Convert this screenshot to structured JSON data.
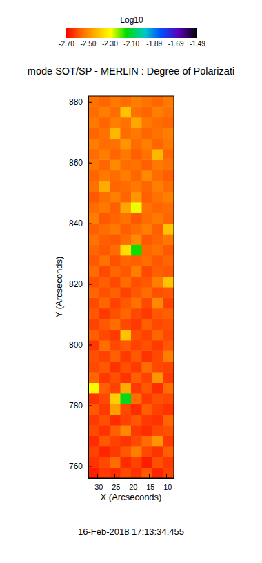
{
  "chart_data": {
    "type": "heatmap",
    "title": "mode SOT/SP - MERLIN : Degree of Polarizati",
    "x_label": "X (Arcseconds)",
    "y_label": "Y (Arcseconds)",
    "annotation": "16-Feb-2018 17:13:34.455",
    "xlim": [
      -32.6,
      -7.8
    ],
    "ylim": [
      756,
      882
    ],
    "xticks": [
      -30,
      -25,
      -20,
      -15,
      -10
    ],
    "yticks": [
      760,
      780,
      800,
      820,
      840,
      860,
      880
    ],
    "x_edges": [
      -32.6,
      -29.5,
      -26.4,
      -23.3,
      -20.2,
      -17.1,
      -14.0,
      -10.9,
      -7.8
    ],
    "y_edges": [
      756,
      759.5,
      763,
      766.5,
      770,
      773.5,
      777,
      780.5,
      784,
      787.5,
      791,
      794.5,
      798,
      801.5,
      805,
      808.5,
      812,
      815.5,
      819,
      822.5,
      826,
      829.5,
      833,
      836.5,
      840,
      843.5,
      847,
      850.5,
      854,
      857.5,
      861,
      864.5,
      868,
      871.5,
      875,
      878.5,
      882
    ],
    "z": [
      [
        -2.66,
        -2.62,
        -2.64,
        -2.6,
        -2.63,
        -2.58,
        -2.65,
        -2.61
      ],
      [
        -2.63,
        -2.6,
        -2.55,
        -2.64,
        -2.61,
        -2.66,
        -2.59,
        -2.62
      ],
      [
        -2.61,
        -2.65,
        -2.62,
        -2.58,
        -2.52,
        -2.6,
        -2.63,
        -2.57
      ],
      [
        -2.64,
        -2.58,
        -2.61,
        -2.63,
        -2.6,
        -2.55,
        -2.48,
        -2.62
      ],
      [
        -2.6,
        -2.63,
        -2.57,
        -2.5,
        -2.62,
        -2.64,
        -2.6,
        -2.59
      ],
      [
        -2.62,
        -2.59,
        -2.64,
        -2.61,
        -2.58,
        -2.62,
        -2.63,
        -2.56
      ],
      [
        -2.58,
        -2.62,
        -2.46,
        -2.6,
        -2.64,
        -2.57,
        -2.61,
        -2.63
      ],
      [
        -2.63,
        -2.6,
        -2.38,
        -2.12,
        -2.55,
        -2.62,
        -2.59,
        -2.6
      ],
      [
        -2.3,
        -2.57,
        -2.61,
        -2.44,
        -2.62,
        -2.58,
        -2.64,
        -2.55
      ],
      [
        -2.56,
        -2.62,
        -2.59,
        -2.63,
        -2.57,
        -2.61,
        -2.48,
        -2.62
      ],
      [
        -2.6,
        -2.58,
        -2.63,
        -2.59,
        -2.62,
        -2.55,
        -2.6,
        -2.61
      ],
      [
        -2.59,
        -2.61,
        -2.57,
        -2.62,
        -2.58,
        -2.63,
        -2.6,
        -2.52
      ],
      [
        -2.62,
        -2.55,
        -2.6,
        -2.58,
        -2.61,
        -2.59,
        -2.62,
        -2.58
      ],
      [
        -2.57,
        -2.6,
        -2.62,
        -2.4,
        -2.59,
        -2.61,
        -2.56,
        -2.6
      ],
      [
        -2.61,
        -2.58,
        -2.55,
        -2.6,
        -2.62,
        -2.57,
        -2.6,
        -2.59
      ],
      [
        -2.58,
        -2.62,
        -2.59,
        -2.56,
        -2.6,
        -2.62,
        -2.58,
        -2.57
      ],
      [
        -2.6,
        -2.56,
        -2.61,
        -2.58,
        -2.54,
        -2.6,
        -2.5,
        -2.61
      ],
      [
        -2.56,
        -2.59,
        -2.57,
        -2.61,
        -2.58,
        -2.55,
        -2.59,
        -2.58
      ],
      [
        -2.59,
        -2.57,
        -2.6,
        -2.55,
        -2.59,
        -2.58,
        -2.52,
        -2.4
      ],
      [
        -2.55,
        -2.6,
        -2.56,
        -2.58,
        -2.52,
        -2.6,
        -2.57,
        -2.58
      ],
      [
        -2.58,
        -2.54,
        -2.59,
        -2.56,
        -2.57,
        -2.55,
        -2.58,
        -2.56
      ],
      [
        -2.56,
        -2.58,
        -2.55,
        -2.35,
        -2.15,
        -2.56,
        -2.54,
        -2.58
      ],
      [
        -2.54,
        -2.57,
        -2.58,
        -2.55,
        -2.5,
        -2.58,
        -2.56,
        -2.53
      ],
      [
        -2.57,
        -2.55,
        -2.53,
        -2.57,
        -2.55,
        -2.52,
        -2.57,
        -2.4
      ],
      [
        -2.52,
        -2.58,
        -2.56,
        -2.54,
        -2.58,
        -2.55,
        -2.53,
        -2.56
      ],
      [
        -2.55,
        -2.53,
        -2.57,
        -2.45,
        -2.28,
        -2.54,
        -2.56,
        -2.55
      ],
      [
        -2.58,
        -2.55,
        -2.52,
        -2.56,
        -2.48,
        -2.57,
        -2.54,
        -2.52
      ],
      [
        -2.54,
        -2.44,
        -2.56,
        -2.55,
        -2.53,
        -2.56,
        -2.52,
        -2.55
      ],
      [
        -2.56,
        -2.53,
        -2.55,
        -2.52,
        -2.56,
        -2.5,
        -2.55,
        -2.57
      ],
      [
        -2.53,
        -2.56,
        -2.5,
        -2.55,
        -2.54,
        -2.57,
        -2.53,
        -2.54
      ],
      [
        -2.55,
        -2.52,
        -2.56,
        -2.53,
        -2.57,
        -2.54,
        -2.42,
        -2.56
      ],
      [
        -2.52,
        -2.55,
        -2.54,
        -2.48,
        -2.55,
        -2.52,
        -2.56,
        -2.53
      ],
      [
        -2.56,
        -2.54,
        -2.42,
        -2.55,
        -2.53,
        -2.56,
        -2.54,
        -2.52
      ],
      [
        -2.53,
        -2.56,
        -2.52,
        -2.54,
        -2.45,
        -2.53,
        -2.55,
        -2.56
      ],
      [
        -2.55,
        -2.52,
        -2.55,
        -2.4,
        -2.54,
        -2.56,
        -2.52,
        -2.54
      ],
      [
        -2.54,
        -2.56,
        -2.53,
        -2.55,
        -2.52,
        -2.54,
        -2.56,
        -2.53
      ]
    ],
    "colorbar": {
      "title": "Log10",
      "range": [
        -2.7,
        -1.49
      ],
      "ticks": [
        {
          "value": -2.7,
          "label": "-2.70"
        },
        {
          "value": -2.5,
          "label": "-2.50"
        },
        {
          "value": -2.3,
          "label": "-2.30"
        },
        {
          "value": -2.1,
          "label": "-2.10"
        },
        -1.89,
        -1.69,
        -1.49
      ]
    }
  }
}
